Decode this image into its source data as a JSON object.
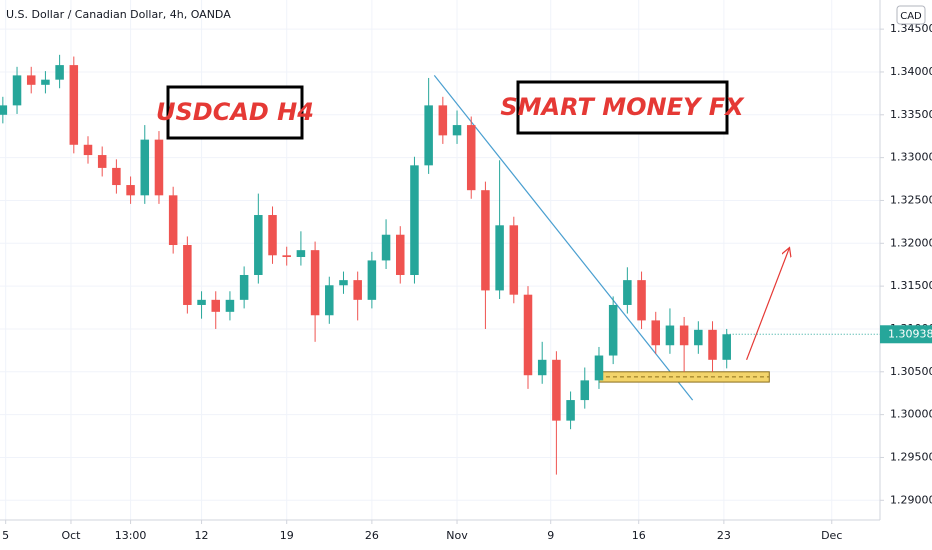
{
  "chart_data": {
    "type": "candlestick",
    "title": "U.S. Dollar / Canadian Dollar, 4h, OANDA",
    "currency": "CAD",
    "annotations": [
      "USDCAD H4",
      "SMART MONEY FX"
    ],
    "last_price_label": "1.30938",
    "x": [
      1,
      6,
      11,
      16,
      21,
      26,
      31,
      36,
      41,
      46,
      51,
      56,
      61,
      66,
      71,
      76,
      81,
      86,
      91,
      96,
      101,
      106,
      111,
      116,
      121,
      126,
      131,
      136,
      141,
      146,
      151,
      156,
      161,
      166,
      171,
      176,
      181,
      186,
      191,
      196,
      201,
      206,
      211,
      216,
      221,
      226,
      231,
      236,
      241,
      246,
      251,
      256
    ],
    "open": [
      1.335,
      1.3361,
      1.3396,
      1.3385,
      1.3391,
      1.3408,
      1.3315,
      1.3303,
      1.3288,
      1.3268,
      1.3256,
      1.3321,
      1.3256,
      1.3198,
      1.3128,
      1.3134,
      1.312,
      1.3134,
      1.3163,
      1.3233,
      1.3186,
      1.3184,
      1.3192,
      1.3116,
      1.3151,
      1.3157,
      1.3134,
      1.318,
      1.321,
      1.3163,
      1.3291,
      1.3361,
      1.3326,
      1.3338,
      1.3262,
      1.3145,
      1.3221,
      1.314,
      1.3046,
      1.3064,
      1.2993,
      1.3017,
      1.304,
      1.3069,
      1.3128,
      1.3157,
      1.311,
      1.3081,
      1.3104,
      1.3081,
      1.3099,
      1.3064
    ],
    "high": [
      1.3371,
      1.3406,
      1.3406,
      1.3401,
      1.342,
      1.3418,
      1.3325,
      1.3313,
      1.3298,
      1.3278,
      1.3338,
      1.3331,
      1.3266,
      1.3208,
      1.3144,
      1.3144,
      1.3144,
      1.3173,
      1.3258,
      1.3243,
      1.3196,
      1.3214,
      1.3202,
      1.3161,
      1.3167,
      1.3167,
      1.319,
      1.3228,
      1.322,
      1.3301,
      1.3393,
      1.3371,
      1.3355,
      1.3348,
      1.3272,
      1.3297,
      1.3231,
      1.315,
      1.3085,
      1.3074,
      1.3027,
      1.3055,
      1.3079,
      1.3138,
      1.3172,
      1.3167,
      1.312,
      1.3124,
      1.3114,
      1.3109,
      1.3109,
      1.31
    ],
    "low": [
      1.334,
      1.3351,
      1.3375,
      1.3375,
      1.3381,
      1.3305,
      1.3293,
      1.3278,
      1.3258,
      1.3246,
      1.3246,
      1.3246,
      1.3188,
      1.3118,
      1.3112,
      1.31,
      1.311,
      1.3124,
      1.3153,
      1.3176,
      1.3174,
      1.3174,
      1.3085,
      1.3106,
      1.3141,
      1.311,
      1.3124,
      1.317,
      1.3153,
      1.3153,
      1.3281,
      1.3316,
      1.3316,
      1.3252,
      1.31,
      1.3135,
      1.313,
      1.303,
      1.3036,
      1.293,
      1.2983,
      1.3007,
      1.303,
      1.3059,
      1.3118,
      1.31,
      1.3071,
      1.3071,
      1.305,
      1.3071,
      1.305,
      1.3054
    ],
    "close": [
      1.3361,
      1.3396,
      1.3385,
      1.3391,
      1.3408,
      1.3315,
      1.3303,
      1.3288,
      1.3268,
      1.3256,
      1.3321,
      1.3256,
      1.3198,
      1.3128,
      1.3134,
      1.312,
      1.3134,
      1.3163,
      1.3233,
      1.3186,
      1.3184,
      1.3192,
      1.3116,
      1.3151,
      1.3157,
      1.3134,
      1.318,
      1.321,
      1.3163,
      1.3291,
      1.3361,
      1.3326,
      1.3338,
      1.3262,
      1.3145,
      1.3221,
      1.314,
      1.3046,
      1.3064,
      1.2993,
      1.3017,
      1.304,
      1.3069,
      1.3128,
      1.3157,
      1.311,
      1.3081,
      1.3104,
      1.3081,
      1.3099,
      1.3064,
      1.30938
    ],
    "up_color": "#26a69a",
    "down_color": "#ef5350",
    "xlim": [
      0,
      310
    ],
    "ylim": [
      1.2877,
      1.3484
    ],
    "xticks": [
      {
        "value": 2,
        "label": "5"
      },
      {
        "value": 25,
        "label": "Oct"
      },
      {
        "value": 46,
        "label": "13:00"
      },
      {
        "value": 71,
        "label": "12"
      },
      {
        "value": 101,
        "label": "19"
      },
      {
        "value": 131,
        "label": "26"
      },
      {
        "value": 161,
        "label": "Nov"
      },
      {
        "value": 194,
        "label": "9"
      },
      {
        "value": 225,
        "label": "16"
      },
      {
        "value": 255,
        "label": "23"
      },
      {
        "value": 293,
        "label": "Dec"
      }
    ],
    "yticks": [
      {
        "value": 1.29,
        "label": "1.29000"
      },
      {
        "value": 1.295,
        "label": "1.29500"
      },
      {
        "value": 1.3,
        "label": "1.30000"
      },
      {
        "value": 1.305,
        "label": "1.30500"
      },
      {
        "value": 1.31,
        "label": "1.31000"
      },
      {
        "value": 1.315,
        "label": "1.31500"
      },
      {
        "value": 1.32,
        "label": "1.32000"
      },
      {
        "value": 1.325,
        "label": "1.32500"
      },
      {
        "value": 1.33,
        "label": "1.33000"
      },
      {
        "value": 1.335,
        "label": "1.33500"
      },
      {
        "value": 1.34,
        "label": "1.34000"
      },
      {
        "value": 1.345,
        "label": "1.34500"
      }
    ],
    "grid": true,
    "trendline": {
      "x": [
        153,
        244
      ],
      "y": [
        1.3396,
        1.3017
      ],
      "color": "#4a9fd0"
    },
    "zone": {
      "x": [
        211,
        271
      ],
      "y": [
        1.3038,
        1.305
      ],
      "color": "#f3d46b"
    },
    "arrow": {
      "x": [
        263,
        278
      ],
      "y": [
        1.3064,
        1.3194
      ],
      "color": "#e53935"
    }
  }
}
